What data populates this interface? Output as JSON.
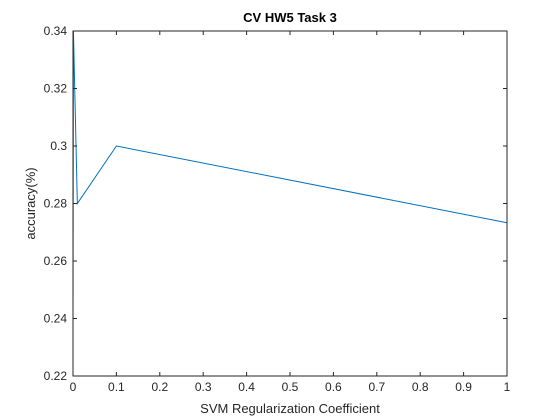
{
  "chart_data": {
    "type": "line",
    "title": "CV HW5 Task 3",
    "xlabel": "SVM Regularization Coefficient",
    "ylabel": "accuracy(%)",
    "xlim": [
      0,
      1
    ],
    "ylim": [
      0.22,
      0.34
    ],
    "xticks": [
      0,
      0.1,
      0.2,
      0.3,
      0.4,
      0.5,
      0.6,
      0.7,
      0.8,
      0.9,
      1
    ],
    "xtick_labels": [
      "0",
      "0.1",
      "0.2",
      "0.3",
      "0.4",
      "0.5",
      "0.6",
      "0.7",
      "0.8",
      "0.9",
      "1"
    ],
    "yticks": [
      0.22,
      0.24,
      0.26,
      0.28,
      0.3,
      0.32,
      0.34
    ],
    "ytick_labels": [
      "0.22",
      "0.24",
      "0.26",
      "0.28",
      "0.3",
      "0.32",
      "0.34"
    ],
    "grid": false,
    "series": [
      {
        "color": "#0072bd",
        "x": [
          0,
          0.001,
          0.01,
          0.1,
          1
        ],
        "y": [
          0.24,
          0.34,
          0.28,
          0.3,
          0.2733
        ]
      }
    ]
  }
}
